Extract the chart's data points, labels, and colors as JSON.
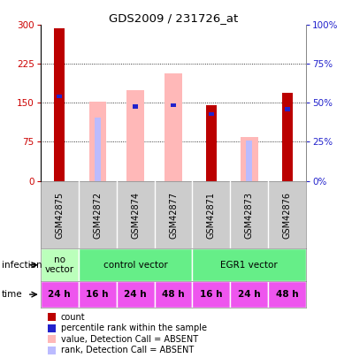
{
  "title": "GDS2009 / 231726_at",
  "samples": [
    "GSM42875",
    "GSM42872",
    "GSM42874",
    "GSM42877",
    "GSM42871",
    "GSM42873",
    "GSM42876"
  ],
  "count_values": [
    293,
    0,
    0,
    0,
    145,
    0,
    170
  ],
  "rank_values": [
    163,
    0,
    143,
    145,
    128,
    0,
    138
  ],
  "absent_value_values": [
    0,
    152,
    175,
    207,
    0,
    85,
    0
  ],
  "absent_rank_values": [
    0,
    122,
    0,
    0,
    0,
    78,
    0
  ],
  "count_present": [
    true,
    false,
    false,
    false,
    true,
    false,
    true
  ],
  "rank_present": [
    true,
    false,
    true,
    true,
    true,
    false,
    true
  ],
  "absent_value_present": [
    false,
    true,
    true,
    true,
    false,
    true,
    false
  ],
  "absent_rank_present": [
    false,
    true,
    false,
    false,
    false,
    true,
    false
  ],
  "ylim": [
    0,
    300
  ],
  "yticks": [
    0,
    75,
    150,
    225,
    300
  ],
  "y2ticks": [
    0,
    25,
    50,
    75,
    100
  ],
  "y2labels": [
    "0%",
    "25%",
    "50%",
    "75%",
    "100%"
  ],
  "infection_groups": [
    {
      "label": "no\nvector",
      "start": 0,
      "end": 1,
      "color": "#bbffbb"
    },
    {
      "label": "control vector",
      "start": 1,
      "end": 4,
      "color": "#66ee88"
    },
    {
      "label": "EGR1 vector",
      "start": 4,
      "end": 7,
      "color": "#66ee88"
    }
  ],
  "time_labels": [
    "24 h",
    "16 h",
    "24 h",
    "48 h",
    "16 h",
    "24 h",
    "48 h"
  ],
  "time_color": "#ee55ee",
  "count_color": "#bb0000",
  "rank_color": "#2222cc",
  "absent_value_color": "#ffb8b8",
  "absent_rank_color": "#bbbbff",
  "label_bg_color": "#cccccc",
  "left_axis_color": "#cc0000",
  "right_axis_color": "#2222cc",
  "bar_width": 0.5,
  "absent_bar_width": 0.45
}
